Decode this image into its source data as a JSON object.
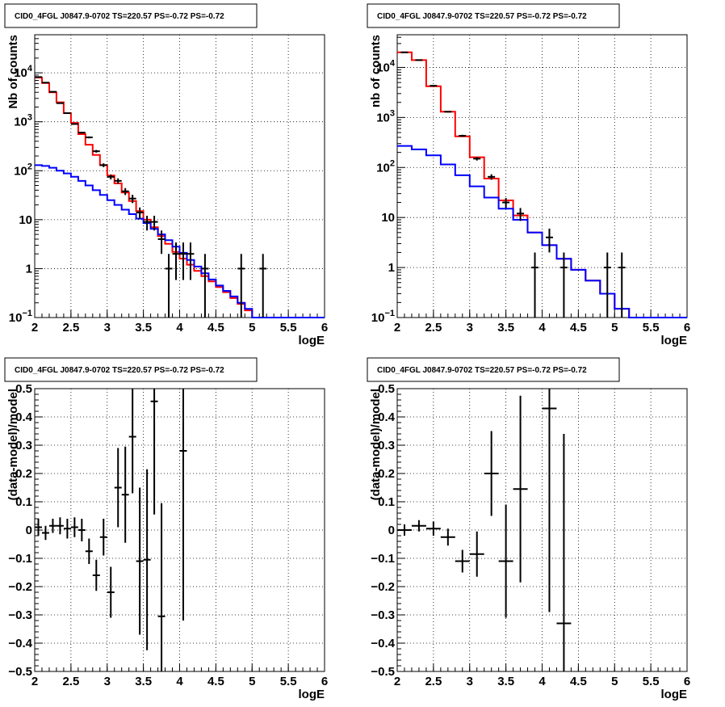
{
  "chart_data": [
    {
      "type": "line",
      "title": "CID0_4FGL J0847.9-0702 TS=220.57 PS=-0.72 PS=-0.72",
      "xlabel": "logE",
      "ylabel": "Nb of counts",
      "xlim": [
        2,
        6
      ],
      "ylim": [
        0.1,
        60000
      ],
      "yscale": "log",
      "grid": true,
      "x_ticks": [
        "2",
        "2.5",
        "3",
        "3.5",
        "4",
        "4.5",
        "5",
        "5.5",
        "6"
      ],
      "y_ticks": [
        {
          "value": 0.1,
          "label": "10",
          "sup": "−1"
        },
        {
          "value": 1,
          "label": "1",
          "sup": ""
        },
        {
          "value": 10,
          "label": "10",
          "sup": ""
        },
        {
          "value": 100,
          "label": "10",
          "sup": "2"
        },
        {
          "value": 1000,
          "label": "10",
          "sup": "3"
        },
        {
          "value": 10000,
          "label": "10",
          "sup": "4"
        }
      ],
      "bin_edges": [
        2,
        2.1,
        2.2,
        2.3,
        2.4,
        2.5,
        2.6,
        2.7,
        2.8,
        2.9,
        3,
        3.1,
        3.2,
        3.3,
        3.4,
        3.5,
        3.6,
        3.7,
        3.8,
        3.9,
        4,
        4.1,
        4.2,
        4.3,
        4.4,
        4.5,
        4.6,
        4.7,
        4.8,
        4.9,
        5,
        5.1,
        5.2,
        5.3,
        5.4,
        5.5,
        5.6,
        5.7,
        5.8,
        5.9,
        6
      ],
      "series": [
        {
          "color": "#ff0000",
          "style": "hist",
          "values": [
            8000,
            6200,
            4000,
            2500,
            1500,
            950,
            560,
            340,
            210,
            130,
            80,
            55,
            36,
            24,
            15,
            10,
            7,
            4.6,
            3.2,
            2.2,
            1.6,
            1.2,
            0.9,
            0.7,
            0.55,
            0.42,
            0.33,
            0.25,
            0.19,
            0.14,
            0.1,
            0.1,
            0.1,
            0.1,
            0.1,
            0.1,
            0.1,
            0.1,
            0.1,
            0.1
          ]
        },
        {
          "color": "#0000ff",
          "style": "hist",
          "values": [
            130,
            125,
            115,
            100,
            88,
            75,
            62,
            50,
            40,
            32,
            25,
            20,
            16,
            13,
            10.5,
            8.5,
            6.5,
            5,
            3.8,
            2.8,
            2.1,
            1.5,
            1.1,
            0.8,
            0.6,
            0.45,
            0.35,
            0.27,
            0.2,
            0.15,
            0.1,
            0.1,
            0.1,
            0.1,
            0.1,
            0.1,
            0.1,
            0.1,
            0.1,
            0.1
          ]
        },
        {
          "color": "#000000",
          "style": "points",
          "x": [
            2.05,
            2.15,
            2.25,
            2.35,
            2.45,
            2.55,
            2.65,
            2.75,
            2.85,
            2.95,
            3.05,
            3.15,
            3.25,
            3.35,
            3.45,
            3.55,
            3.65,
            3.75,
            3.85,
            3.95,
            4.05,
            4.15,
            4.35,
            4.85,
            5.15
          ],
          "y": [
            8200,
            6300,
            4100,
            2400,
            1500,
            900,
            600,
            480,
            250,
            130,
            75,
            62,
            38,
            27,
            14,
            9,
            9,
            4,
            1,
            2,
            2,
            2,
            1,
            1,
            1
          ]
        }
      ]
    },
    {
      "type": "line",
      "title": "CID0_4FGL J0847.9-0702 TS=220.57 PS=-0.72 PS=-0.72",
      "xlabel": "logE",
      "ylabel": "nb of counts",
      "xlim": [
        2,
        6
      ],
      "ylim": [
        0.1,
        45000
      ],
      "yscale": "log",
      "grid": true,
      "x_ticks": [
        "2",
        "2.5",
        "3",
        "3.5",
        "4",
        "4.5",
        "5",
        "5.5",
        "6"
      ],
      "y_ticks": [
        {
          "value": 0.1,
          "label": "10",
          "sup": "−1"
        },
        {
          "value": 1,
          "label": "1",
          "sup": ""
        },
        {
          "value": 10,
          "label": "10",
          "sup": ""
        },
        {
          "value": 100,
          "label": "10",
          "sup": "2"
        },
        {
          "value": 1000,
          "label": "10",
          "sup": "3"
        },
        {
          "value": 10000,
          "label": "10",
          "sup": "4"
        }
      ],
      "bin_edges": [
        2,
        2.2,
        2.4,
        2.6,
        2.8,
        3,
        3.2,
        3.4,
        3.6,
        3.8,
        4,
        4.2,
        4.4,
        4.6,
        4.8,
        5,
        5.2,
        5.4,
        5.6,
        5.8,
        6
      ],
      "series": [
        {
          "color": "#ff0000",
          "style": "hist",
          "values": [
            20000,
            14000,
            4200,
            1300,
            420,
            160,
            60,
            22,
            11,
            5,
            2.8,
            1.5,
            0.9,
            0.55,
            0.3,
            0.15,
            0.1,
            0.1,
            0.1,
            0.1
          ]
        },
        {
          "color": "#0000ff",
          "style": "hist",
          "values": [
            270,
            230,
            175,
            115,
            70,
            42,
            25,
            15,
            9,
            5,
            2.8,
            1.5,
            0.9,
            0.55,
            0.3,
            0.15,
            0.1,
            0.1,
            0.1,
            0.1
          ]
        },
        {
          "color": "#000000",
          "style": "points",
          "x": [
            2.1,
            2.3,
            2.5,
            2.7,
            2.9,
            3.1,
            3.3,
            3.5,
            3.7,
            3.9,
            4.1,
            4.3,
            4.9,
            5.1
          ],
          "y": [
            20000,
            14000,
            4300,
            1300,
            430,
            150,
            65,
            20,
            12,
            1,
            4,
            1,
            1,
            1
          ]
        }
      ]
    },
    {
      "type": "scatter",
      "title": "CID0_4FGL J0847.9-0702 TS=220.57 PS=-0.72 PS=-0.72",
      "xlabel": "logE",
      "ylabel": "(data-model)/model",
      "xlim": [
        2,
        6
      ],
      "ylim": [
        -0.5,
        0.5
      ],
      "grid": true,
      "x_ticks": [
        "2",
        "2.5",
        "3",
        "3.5",
        "4",
        "4.5",
        "5",
        "5.5",
        "6"
      ],
      "y_ticks": [
        {
          "value": -0.5,
          "label": "−0.5",
          "sup": ""
        },
        {
          "value": -0.4,
          "label": "−0.4",
          "sup": ""
        },
        {
          "value": -0.3,
          "label": "−0.3",
          "sup": ""
        },
        {
          "value": -0.2,
          "label": "−0.2",
          "sup": ""
        },
        {
          "value": -0.1,
          "label": "−0.1",
          "sup": ""
        },
        {
          "value": 0,
          "label": "0",
          "sup": ""
        },
        {
          "value": 0.1,
          "label": "0.1",
          "sup": ""
        },
        {
          "value": 0.2,
          "label": "0.2",
          "sup": ""
        },
        {
          "value": 0.3,
          "label": "0.3",
          "sup": ""
        },
        {
          "value": 0.4,
          "label": "0.4",
          "sup": ""
        },
        {
          "value": 0.5,
          "label": "0.5",
          "sup": ""
        }
      ],
      "xerr": 0.05,
      "series": [
        {
          "color": "#000000",
          "x": [
            2.05,
            2.15,
            2.25,
            2.35,
            2.45,
            2.55,
            2.65,
            2.75,
            2.85,
            2.95,
            3.05,
            3.15,
            3.25,
            3.35,
            3.45,
            3.55,
            3.65,
            3.75,
            4.05
          ],
          "y": [
            0.01,
            -0.01,
            0.015,
            0.015,
            0.005,
            0.01,
            0.0,
            -0.075,
            -0.16,
            -0.025,
            -0.22,
            0.15,
            0.125,
            0.33,
            -0.11,
            -0.105,
            0.455,
            -0.305,
            0.28
          ],
          "yerr": [
            0.03,
            0.025,
            0.025,
            0.03,
            0.035,
            0.035,
            0.04,
            0.045,
            0.055,
            0.065,
            0.09,
            0.14,
            0.17,
            0.2,
            0.26,
            0.32,
            0.4,
            0.4,
            0.6
          ]
        }
      ]
    },
    {
      "type": "scatter",
      "title": "CID0_4FGL J0847.9-0702 TS=220.57 PS=-0.72 PS=-0.72",
      "xlabel": "logE",
      "ylabel": "(data-model)/model",
      "xlim": [
        2,
        6
      ],
      "ylim": [
        -0.5,
        0.5
      ],
      "grid": true,
      "x_ticks": [
        "2",
        "2.5",
        "3",
        "3.5",
        "4",
        "4.5",
        "5",
        "5.5",
        "6"
      ],
      "y_ticks": [
        {
          "value": -0.5,
          "label": "−0.5",
          "sup": ""
        },
        {
          "value": -0.4,
          "label": "−0.4",
          "sup": ""
        },
        {
          "value": -0.3,
          "label": "−0.3",
          "sup": ""
        },
        {
          "value": -0.2,
          "label": "−0.2",
          "sup": ""
        },
        {
          "value": -0.1,
          "label": "−0.1",
          "sup": ""
        },
        {
          "value": 0,
          "label": "0",
          "sup": ""
        },
        {
          "value": 0.1,
          "label": "0.1",
          "sup": ""
        },
        {
          "value": 0.2,
          "label": "0.2",
          "sup": ""
        },
        {
          "value": 0.3,
          "label": "0.3",
          "sup": ""
        },
        {
          "value": 0.4,
          "label": "0.4",
          "sup": ""
        },
        {
          "value": 0.5,
          "label": "0.5",
          "sup": ""
        }
      ],
      "xerr": 0.1,
      "series": [
        {
          "color": "#000000",
          "x": [
            2.1,
            2.3,
            2.5,
            2.7,
            2.9,
            3.1,
            3.3,
            3.5,
            3.7,
            4.1,
            4.3
          ],
          "y": [
            0.0,
            0.015,
            0.005,
            -0.025,
            -0.11,
            -0.085,
            0.2,
            -0.11,
            0.145,
            0.43,
            -0.33
          ],
          "yerr": [
            0.02,
            0.02,
            0.025,
            0.03,
            0.04,
            0.08,
            0.15,
            0.2,
            0.33,
            0.72,
            0.67
          ]
        }
      ]
    }
  ]
}
